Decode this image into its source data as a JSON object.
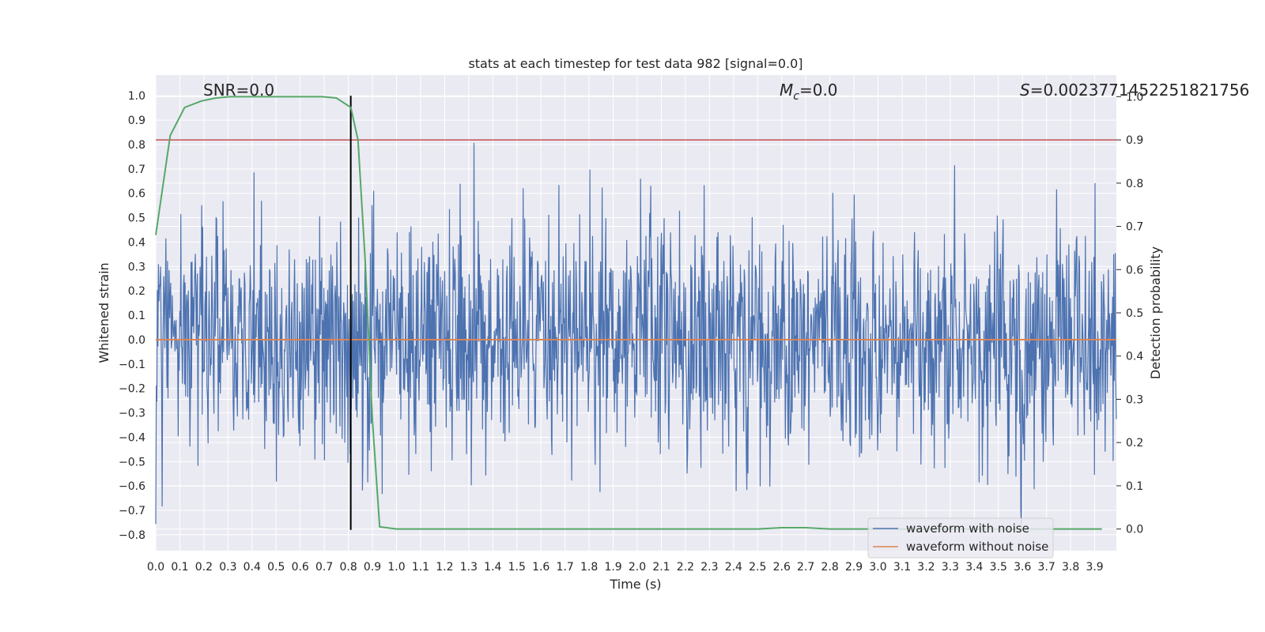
{
  "chart_data": {
    "type": "line",
    "title": "stats at each timestep for test data 982 [signal=0.0]",
    "xlabel": "Time (s)",
    "ylabel": "Whitened strain",
    "y2label": "Detection probability",
    "xlim": [
      0.0,
      3.99
    ],
    "ylim": [
      -0.865,
      1.085
    ],
    "y2lim": [
      -0.05,
      1.05
    ],
    "x_ticks": [
      "0.0",
      "0.1",
      "0.2",
      "0.3",
      "0.4",
      "0.5",
      "0.6",
      "0.7",
      "0.8",
      "0.9",
      "1.0",
      "1.1",
      "1.2",
      "1.3",
      "1.4",
      "1.5",
      "1.6",
      "1.7",
      "1.8",
      "1.9",
      "2.0",
      "2.1",
      "2.2",
      "2.3",
      "2.4",
      "2.5",
      "2.6",
      "2.7",
      "2.8",
      "2.9",
      "3.0",
      "3.1",
      "3.2",
      "3.3",
      "3.4",
      "3.5",
      "3.6",
      "3.7",
      "3.8",
      "3.9"
    ],
    "y_ticks": [
      "−0.8",
      "−0.7",
      "−0.6",
      "−0.5",
      "−0.4",
      "−0.3",
      "−0.2",
      "−0.1",
      "0.0",
      "0.1",
      "0.2",
      "0.3",
      "0.4",
      "0.5",
      "0.6",
      "0.7",
      "0.8",
      "0.9",
      "1.0"
    ],
    "y2_ticks": [
      "0.0",
      "0.1",
      "0.2",
      "0.3",
      "0.4",
      "0.5",
      "0.6",
      "0.7",
      "0.8",
      "0.9",
      "1.0"
    ],
    "grid": true,
    "legend_position": "bottom-right",
    "annotations": {
      "snr": "SNR=0.0",
      "mc_symbol": "M",
      "mc_sub": "c",
      "mc_value": "=0.0",
      "s_symbol": "S",
      "s_value": "=0.0023771452251821756"
    },
    "series": [
      {
        "name": "waveform with noise",
        "color": "#4c72b0",
        "axis": "left",
        "noise_profile": {
          "std": 0.24,
          "max": 0.84,
          "min": -0.78,
          "n_points": 1800
        }
      },
      {
        "name": "waveform without noise",
        "color": "#dd8452",
        "axis": "left",
        "x": [
          0.0,
          3.99
        ],
        "y": [
          0.0,
          0.0
        ]
      },
      {
        "name": "detection probability",
        "color": "#55a868",
        "axis": "right",
        "x": [
          0.0,
          0.06,
          0.12,
          0.19,
          0.25,
          0.31,
          0.37,
          0.44,
          0.5,
          0.56,
          0.62,
          0.69,
          0.75,
          0.81,
          0.84,
          0.87,
          0.9,
          0.93,
          1.0,
          1.1,
          2.5,
          2.6,
          2.7,
          2.8,
          3.0,
          3.93
        ],
        "y": [
          0.68,
          0.91,
          0.975,
          0.99,
          0.997,
          1.0,
          1.0,
          1.0,
          1.0,
          1.0,
          1.0,
          1.0,
          0.997,
          0.975,
          0.9,
          0.62,
          0.25,
          0.005,
          0.0,
          0.0,
          0.0,
          0.003,
          0.003,
          0.0,
          0.0,
          0.0
        ]
      }
    ],
    "reference_lines": [
      {
        "orientation": "horizontal",
        "axis": "right",
        "value": 0.9,
        "color": "#c44e52"
      },
      {
        "orientation": "vertical",
        "axis": "left",
        "value": 0.81,
        "from": -0.78,
        "to": 1.0,
        "color": "#000000"
      }
    ],
    "colors": {
      "axes_bg": "#eaeaf2",
      "grid": "#ffffff",
      "text": "#262626"
    }
  }
}
